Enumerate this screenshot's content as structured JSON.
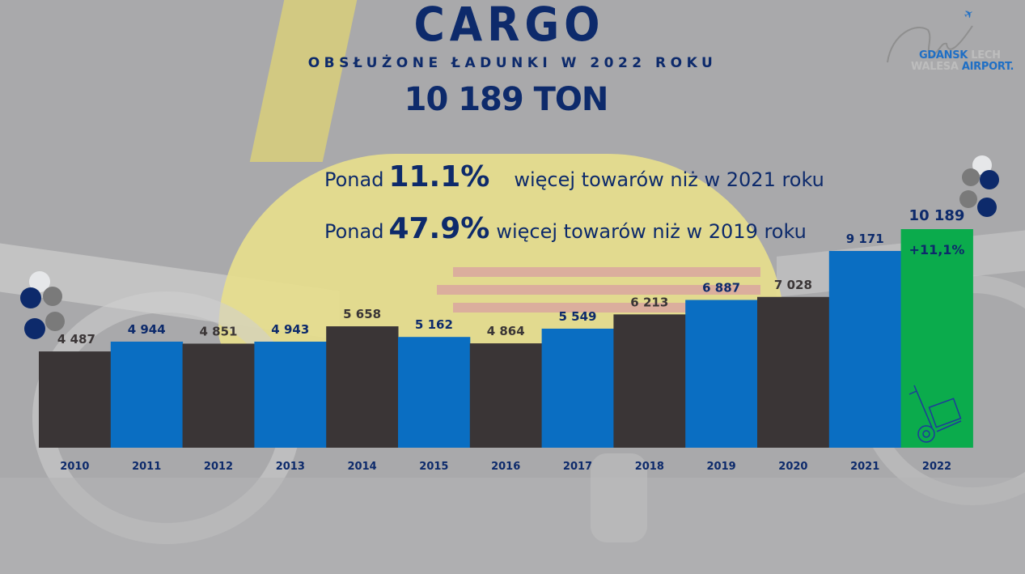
{
  "header": {
    "title": "CARGO",
    "subtitle": "OBSŁUŻONE ŁADUNKI W 2022 ROKU",
    "total": "10 189 TON"
  },
  "stats": [
    {
      "prefix": "Ponad",
      "value": "11.1%",
      "suffix": "więcej towarów niż w 2021 roku"
    },
    {
      "prefix": "Ponad",
      "value": "47.9%",
      "suffix": "więcej towarów niż w 2019 roku"
    }
  ],
  "logo": {
    "line1_main": "GDANSK",
    "line1_faded": "LECH",
    "line2_faded": "WALESA",
    "line2_main": "AIRPORT."
  },
  "colors": {
    "dark_bar": "#3a3536",
    "blue_bar": "#0a6ec2",
    "green_bar": "#0bab4c",
    "navy_text": "#0d2a6b",
    "dark_label": "#3a3536"
  },
  "chart_data": {
    "type": "bar",
    "title": "CARGO — obsłużone ładunki (ton)",
    "xlabel": "",
    "ylabel": "",
    "ylim": [
      0,
      10189
    ],
    "grid": false,
    "categories": [
      "2010",
      "2011",
      "2012",
      "2013",
      "2014",
      "2015",
      "2016",
      "2017",
      "2018",
      "2019",
      "2020",
      "2021",
      "2022"
    ],
    "values": [
      4487,
      4944,
      4851,
      4943,
      5658,
      5162,
      4864,
      5549,
      6213,
      6887,
      7028,
      9171,
      10189
    ],
    "value_labels": [
      "4 487",
      "4 944",
      "4 851",
      "4 943",
      "5 658",
      "5 162",
      "4 864",
      "5 549",
      "6 213",
      "6 887",
      "7 028",
      "9 171",
      "10 189"
    ],
    "bar_colors": [
      "dark",
      "blue",
      "dark",
      "blue",
      "dark",
      "blue",
      "dark",
      "blue",
      "dark",
      "blue",
      "dark",
      "blue",
      "green"
    ],
    "annotations": [
      {
        "category": "2022",
        "text": "+11,1%"
      }
    ]
  }
}
